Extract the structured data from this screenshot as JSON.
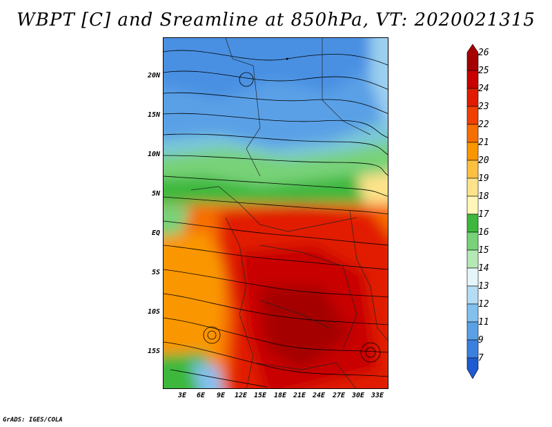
{
  "title": "WBPT [C] and Sreamline at 850hPa, VT: 2020021315",
  "credit": "GrADS: IGES/COLA",
  "map": {
    "lat_labels": [
      "20N",
      "15N",
      "10N",
      "5N",
      "EQ",
      "5S",
      "10S",
      "15S"
    ],
    "lon_labels": [
      "3E",
      "6E",
      "9E",
      "12E",
      "15E",
      "18E",
      "21E",
      "24E",
      "27E",
      "30E",
      "33E"
    ]
  },
  "colorbar": {
    "labels": [
      "26",
      "25",
      "24",
      "23",
      "22",
      "21",
      "20",
      "19",
      "18",
      "17",
      "16",
      "15",
      "14",
      "13",
      "12",
      "11",
      "9",
      "7"
    ],
    "colors": [
      "#a50000",
      "#c80000",
      "#e11b00",
      "#f04000",
      "#f76e00",
      "#fa9600",
      "#fbc040",
      "#fde38a",
      "#fff6b8",
      "#3cb83c",
      "#78d278",
      "#b4e8b4",
      "#e4f6fa",
      "#b4dcf5",
      "#82c0ee",
      "#5aa0e6",
      "#3c80df",
      "#1e5ad2"
    ]
  }
}
